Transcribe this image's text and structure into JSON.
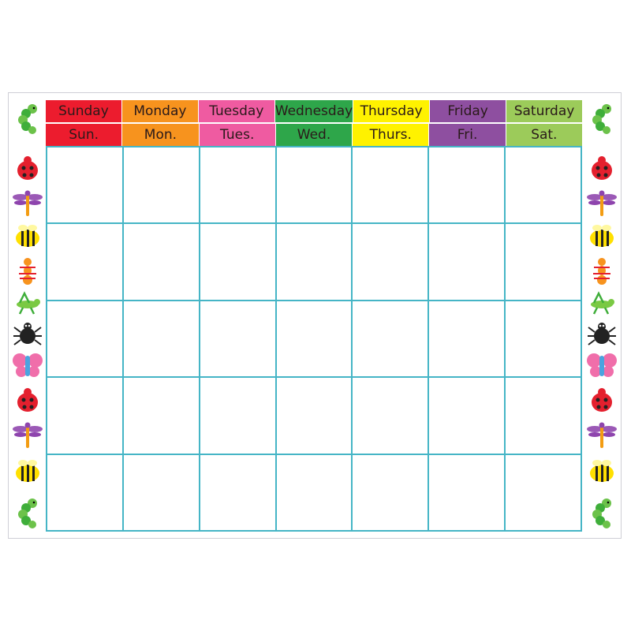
{
  "days": [
    {
      "full": "Sunday",
      "abbr": "Sun.",
      "color": "#ec1c2e"
    },
    {
      "full": "Monday",
      "abbr": "Mon.",
      "color": "#f7931e"
    },
    {
      "full": "Tuesday",
      "abbr": "Tues.",
      "color": "#ef5ba1"
    },
    {
      "full": "Wednesday",
      "abbr": "Wed.",
      "color": "#2ea64a"
    },
    {
      "full": "Thursday",
      "abbr": "Thurs.",
      "color": "#fff200"
    },
    {
      "full": "Friday",
      "abbr": "Fri.",
      "color": "#8e4fa0"
    },
    {
      "full": "Saturday",
      "abbr": "Sat.",
      "color": "#9ccb5a"
    }
  ],
  "grid": {
    "rows": 5,
    "columns": 7,
    "line_color": "#45b5c6"
  },
  "border_bugs": [
    "caterpillar-icon",
    "ladybug-icon",
    "dragonfly-icon",
    "bee-icon",
    "ant-icon",
    "grasshopper-icon",
    "spider-icon",
    "butterfly-icon",
    "ladybug-icon",
    "dragonfly-icon",
    "bee-icon",
    "caterpillar-icon"
  ]
}
